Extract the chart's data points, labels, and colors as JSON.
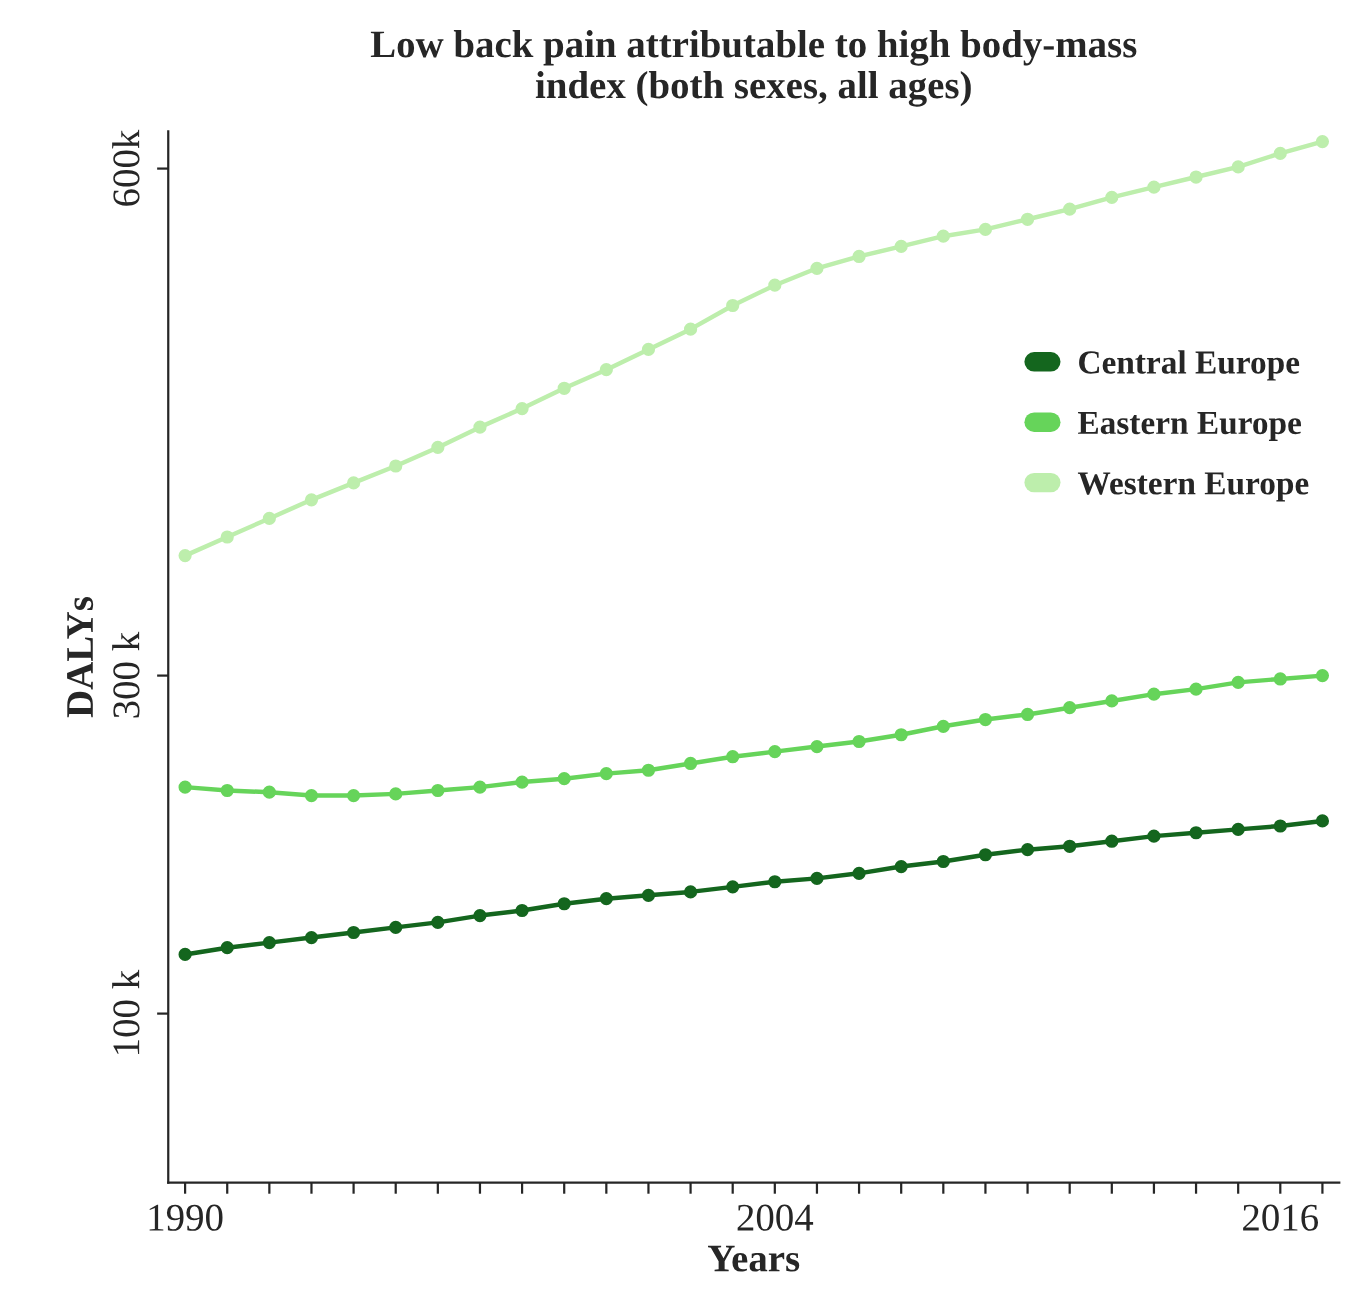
{
  "chart_data": {
    "type": "line",
    "title": "Low back pain attributable to high body-mass\nindex (both sexes, all ages)",
    "xlabel": "Years",
    "ylabel": "DALYs",
    "x": [
      1990,
      1991,
      1992,
      1993,
      1994,
      1995,
      1996,
      1997,
      1998,
      1999,
      2000,
      2001,
      2002,
      2003,
      2004,
      2005,
      2006,
      2007,
      2008,
      2009,
      2010,
      2011,
      2012,
      2013,
      2014,
      2015,
      2016,
      2017
    ],
    "series": [
      {
        "name": "Central Europe",
        "color": "#14661e",
        "values": [
          135000,
          139000,
          142000,
          145000,
          148000,
          151000,
          154000,
          158000,
          161000,
          165000,
          168000,
          170000,
          172000,
          175000,
          178000,
          180000,
          183000,
          187000,
          190000,
          194000,
          197000,
          199000,
          202000,
          205000,
          207000,
          209000,
          211000,
          214000
        ]
      },
      {
        "name": "Eastern Europe",
        "color": "#66d45a",
        "values": [
          234000,
          232000,
          231000,
          229000,
          229000,
          230000,
          232000,
          234000,
          237000,
          239000,
          242000,
          244000,
          248000,
          252000,
          255000,
          258000,
          261000,
          265000,
          270000,
          274000,
          277000,
          281000,
          285000,
          289000,
          292000,
          296000,
          298000,
          300000
        ]
      },
      {
        "name": "Western Europe",
        "color": "#bdeeac",
        "values": [
          371000,
          382000,
          393000,
          404000,
          414000,
          424000,
          435000,
          447000,
          458000,
          470000,
          481000,
          493000,
          505000,
          519000,
          531000,
          541000,
          548000,
          554000,
          560000,
          564000,
          570000,
          576000,
          583000,
          589000,
          595000,
          601000,
          609000,
          616000
        ]
      }
    ],
    "xlim": [
      1989.6,
      2017.4
    ],
    "xticks": [
      1990,
      {
        "value": 1991,
        "label": null
      },
      {
        "value": 1992,
        "label": null
      },
      {
        "value": 1993,
        "label": null
      },
      {
        "value": 1994,
        "label": null
      },
      {
        "value": 1995,
        "label": null
      },
      {
        "value": 1996,
        "label": null
      },
      {
        "value": 1997,
        "label": null
      },
      {
        "value": 1998,
        "label": null
      },
      {
        "value": 1999,
        "label": null
      },
      {
        "value": 2000,
        "label": null
      },
      {
        "value": 2001,
        "label": null
      },
      {
        "value": 2002,
        "label": null
      },
      {
        "value": 2003,
        "label": null
      },
      2004,
      {
        "value": 2005,
        "label": null
      },
      {
        "value": 2006,
        "label": null
      },
      {
        "value": 2007,
        "label": null
      },
      {
        "value": 2008,
        "label": null
      },
      {
        "value": 2009,
        "label": null
      },
      {
        "value": 2010,
        "label": null
      },
      {
        "value": 2011,
        "label": null
      },
      {
        "value": 2012,
        "label": null
      },
      {
        "value": 2013,
        "label": null
      },
      {
        "value": 2014,
        "label": null
      },
      {
        "value": 2015,
        "label": null
      },
      2016,
      {
        "value": 2017,
        "label": null
      }
    ],
    "ylim": [
      0,
      622000
    ],
    "yticks": [
      {
        "value": 100000,
        "label": "100 k"
      },
      {
        "value": 300000,
        "label": "300 k"
      },
      {
        "value": 600000,
        "label": "600k"
      }
    ],
    "grid": false,
    "legend": "right",
    "marker": "circle",
    "line_style": "solid"
  }
}
